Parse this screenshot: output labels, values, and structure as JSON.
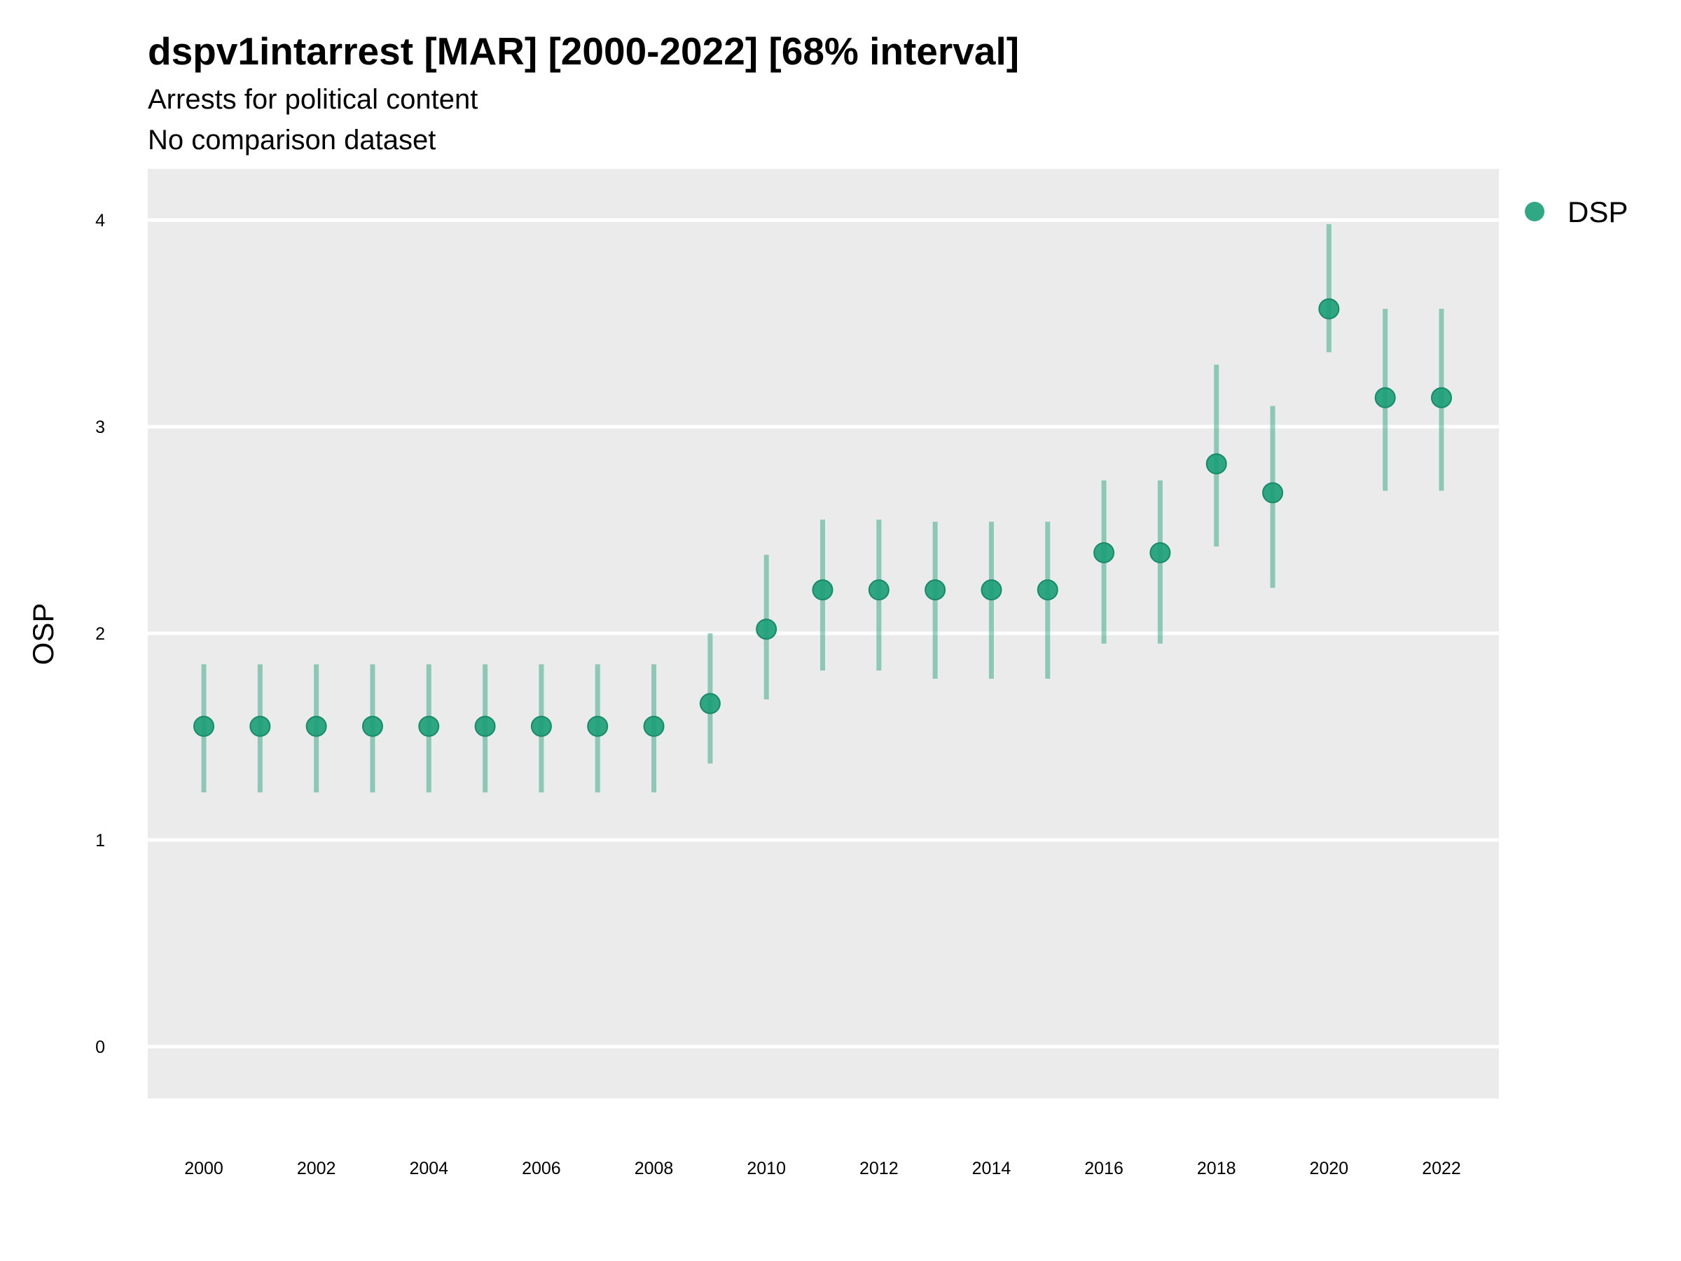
{
  "chart_data": {
    "type": "scatter",
    "title": "dspv1intarrest [MAR] [2000-2022] [68% interval]",
    "subtitle": "Arrests for political content",
    "subtitle2": "No comparison dataset",
    "xlabel": "",
    "ylabel": "OSP",
    "ylim": [
      -0.25,
      4.25
    ],
    "xlim": [
      1999,
      2023
    ],
    "yticks": [
      0,
      1,
      2,
      3,
      4
    ],
    "xticks": [
      2000,
      2002,
      2004,
      2006,
      2008,
      2010,
      2012,
      2014,
      2016,
      2018,
      2020,
      2022
    ],
    "grid": true,
    "legend_position": "top-right",
    "series": [
      {
        "name": "DSP",
        "color": "#1b9e77",
        "x": [
          2000,
          2001,
          2002,
          2003,
          2004,
          2005,
          2006,
          2007,
          2008,
          2009,
          2010,
          2011,
          2012,
          2013,
          2014,
          2015,
          2016,
          2017,
          2018,
          2019,
          2020,
          2021,
          2022
        ],
        "y": [
          1.55,
          1.55,
          1.55,
          1.55,
          1.55,
          1.55,
          1.55,
          1.55,
          1.55,
          1.66,
          2.02,
          2.21,
          2.21,
          2.21,
          2.21,
          2.21,
          2.39,
          2.39,
          2.82,
          2.68,
          3.57,
          3.14,
          3.14
        ],
        "lower": [
          1.23,
          1.23,
          1.23,
          1.23,
          1.23,
          1.23,
          1.23,
          1.23,
          1.23,
          1.37,
          1.68,
          1.82,
          1.82,
          1.78,
          1.78,
          1.78,
          1.95,
          1.95,
          2.42,
          2.22,
          3.36,
          2.69,
          2.69
        ],
        "upper": [
          1.85,
          1.85,
          1.85,
          1.85,
          1.85,
          1.85,
          1.85,
          1.85,
          1.85,
          2.0,
          2.38,
          2.55,
          2.55,
          2.54,
          2.54,
          2.54,
          2.74,
          2.74,
          3.3,
          3.1,
          3.98,
          3.57,
          3.57
        ]
      }
    ]
  }
}
